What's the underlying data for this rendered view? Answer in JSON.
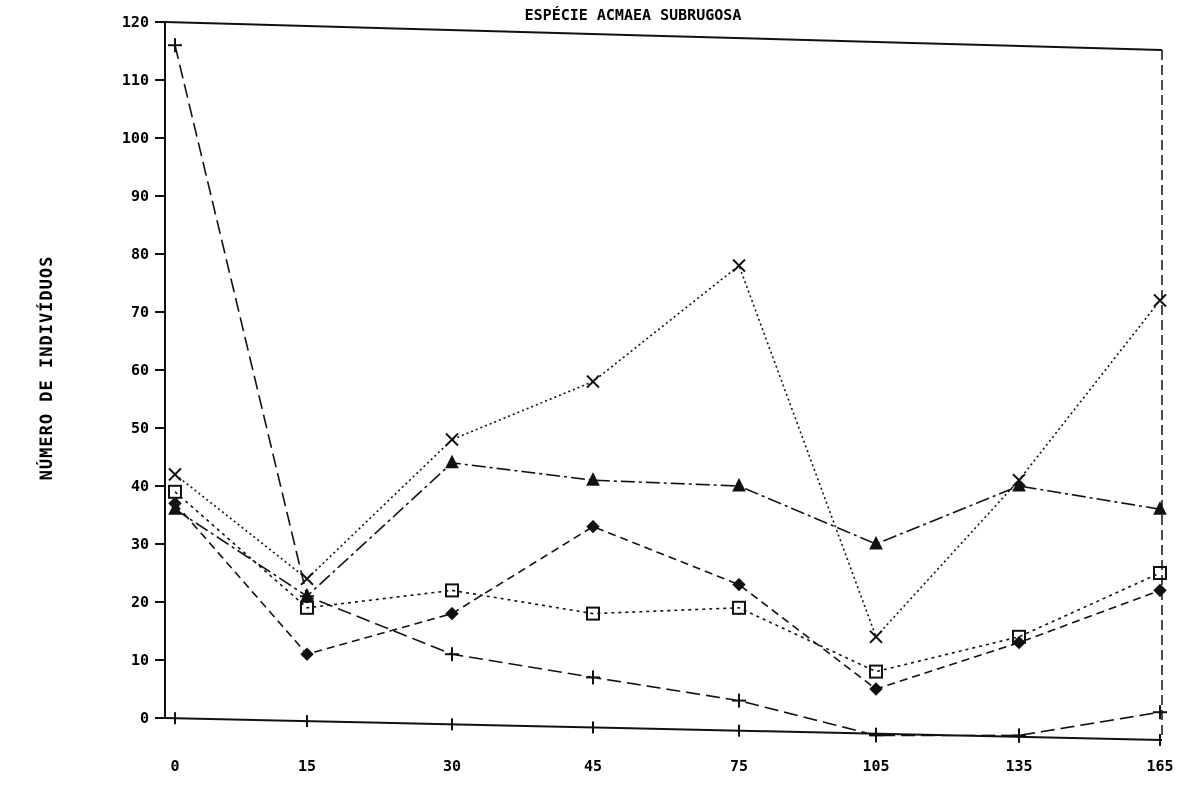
{
  "chart_data": {
    "type": "line",
    "title": "ESPÉCIE ACMAEA SUBRUGOSA",
    "xlabel": "",
    "ylabel": "NÚMERO DE INDIVÍDUOS",
    "categories": [
      "0",
      "15",
      "30",
      "45",
      "75",
      "105",
      "135",
      "165"
    ],
    "x_tick_labels": [
      "0",
      "15",
      "30",
      "45",
      "75",
      "105",
      "135",
      "165"
    ],
    "y_tick_labels": [
      "0",
      "10",
      "20",
      "30",
      "40",
      "50",
      "60",
      "70",
      "80",
      "90",
      "100",
      "110",
      "120"
    ],
    "ylim": [
      0,
      120
    ],
    "grid": false,
    "legend": "none",
    "series": [
      {
        "marker": "plus",
        "dash": "14,6",
        "values": [
          116,
          21,
          11,
          7,
          3,
          -3,
          -3,
          1
        ]
      },
      {
        "marker": "square",
        "dash": "3,4",
        "values": [
          39,
          19,
          22,
          18,
          19,
          8,
          14,
          25
        ]
      },
      {
        "marker": "triangle",
        "dash": "14,4,3,4",
        "values": [
          36,
          21,
          44,
          41,
          40,
          30,
          40,
          36
        ]
      },
      {
        "marker": "x",
        "dash": "2,3",
        "values": [
          42,
          24,
          48,
          58,
          78,
          14,
          41,
          72
        ]
      },
      {
        "marker": "diamond",
        "dash": "8,5",
        "values": [
          37,
          11,
          18,
          33,
          23,
          5,
          13,
          22
        ]
      }
    ],
    "colors": {
      "ink": "#111111",
      "background": "#ffffff"
    }
  }
}
